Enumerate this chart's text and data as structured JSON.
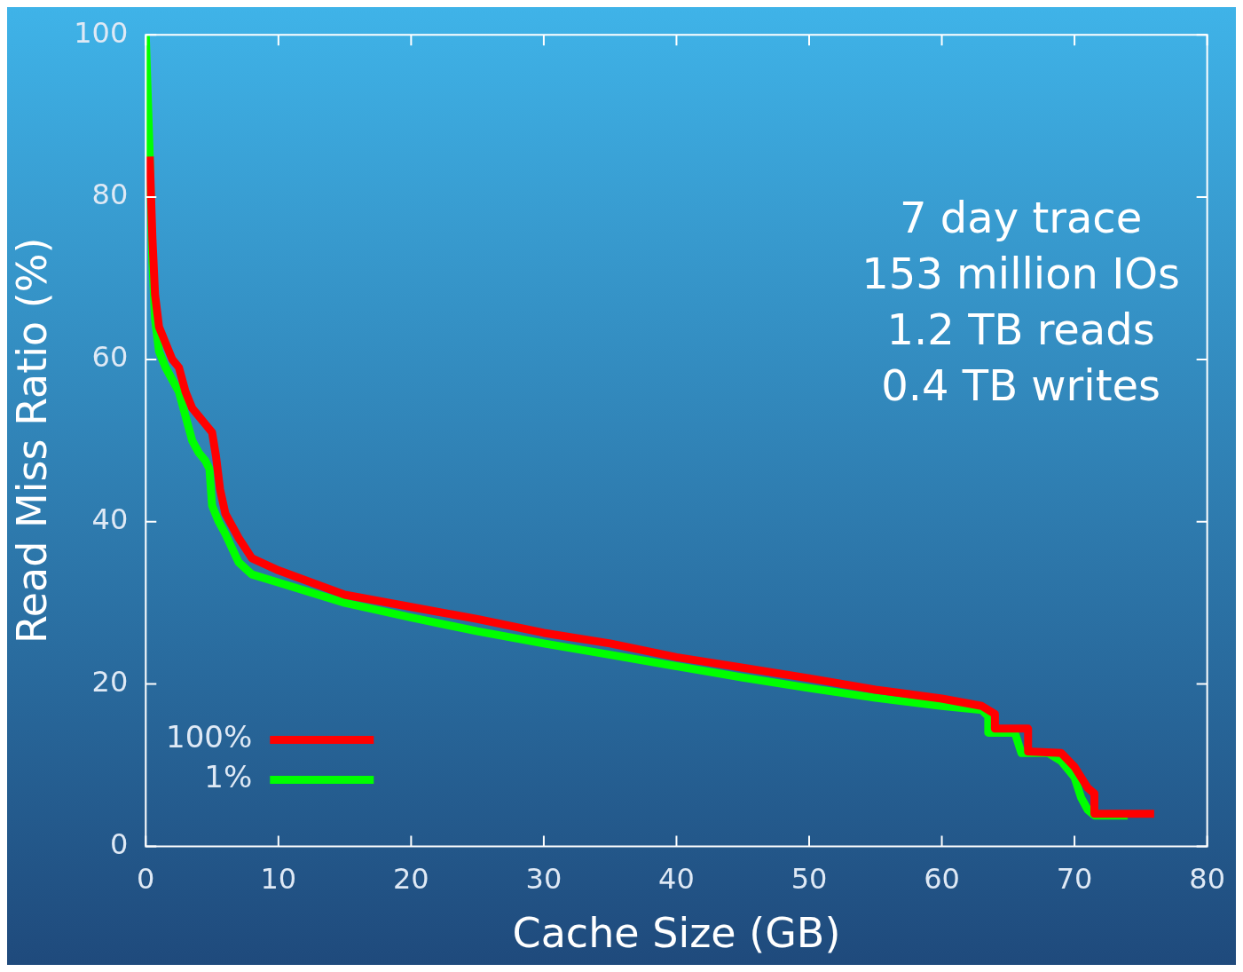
{
  "chart_data": {
    "type": "line",
    "xlabel": "Cache Size (GB)",
    "ylabel": "Read Miss Ratio (%)",
    "xlim": [
      0,
      80
    ],
    "xticks": [
      0,
      10,
      20,
      30,
      40,
      50,
      60,
      70,
      80
    ],
    "ylim": [
      0,
      100
    ],
    "yticks": [
      0,
      20,
      40,
      60,
      80,
      100
    ],
    "grid": false,
    "legend": "bottom left",
    "marker": "none",
    "line_style": "solid",
    "annotations": [
      "7 day trace",
      "153 million IOs",
      "1.2 TB reads",
      "0.4 TB writes"
    ],
    "series": [
      {
        "name": "100%",
        "color": "#ff0000",
        "x": [
          0.3,
          0.5,
          0.7,
          1,
          1.5,
          2,
          2.5,
          3,
          3.5,
          4,
          4.5,
          5,
          5.3,
          5.6,
          6,
          7,
          8,
          10,
          15,
          20,
          25,
          30,
          35,
          40,
          45,
          50,
          55,
          60,
          63,
          64,
          64,
          66.5,
          66.5,
          69,
          70,
          71,
          71.5,
          71.5,
          76
        ],
        "values": [
          85,
          75,
          68,
          64,
          62,
          60,
          59,
          56,
          54,
          53,
          52,
          51,
          48,
          44,
          41,
          38,
          35.5,
          34,
          31,
          29.5,
          28,
          26.3,
          25,
          23.3,
          22,
          20.7,
          19.3,
          18.2,
          17.3,
          16.3,
          14.5,
          14.5,
          11.7,
          11.5,
          9.8,
          7.2,
          6.5,
          4,
          4
        ]
      },
      {
        "name": "1%",
        "color": "#00ff00",
        "x": [
          0,
          0.3,
          0.5,
          0.7,
          1,
          1.5,
          2,
          2.5,
          3,
          3.5,
          4,
          4.5,
          4.8,
          5,
          5.5,
          6,
          7,
          8,
          10,
          15,
          20,
          25,
          30,
          35,
          40,
          45,
          50,
          55,
          60,
          63,
          63.5,
          63.5,
          65.5,
          66,
          68,
          69,
          70,
          70.5,
          71,
          71.5,
          74
        ],
        "values": [
          100,
          85,
          72,
          65,
          61,
          59,
          57.5,
          56,
          53,
          50,
          48.5,
          47.5,
          46.5,
          42,
          40,
          38.5,
          35,
          33.5,
          32.5,
          30,
          28.2,
          26.5,
          25,
          23.6,
          22.2,
          20.8,
          19.5,
          18.3,
          17.3,
          16.8,
          16,
          14,
          14,
          11.5,
          11.5,
          10.5,
          8.5,
          6,
          4.5,
          3.8,
          3.8
        ]
      }
    ]
  }
}
